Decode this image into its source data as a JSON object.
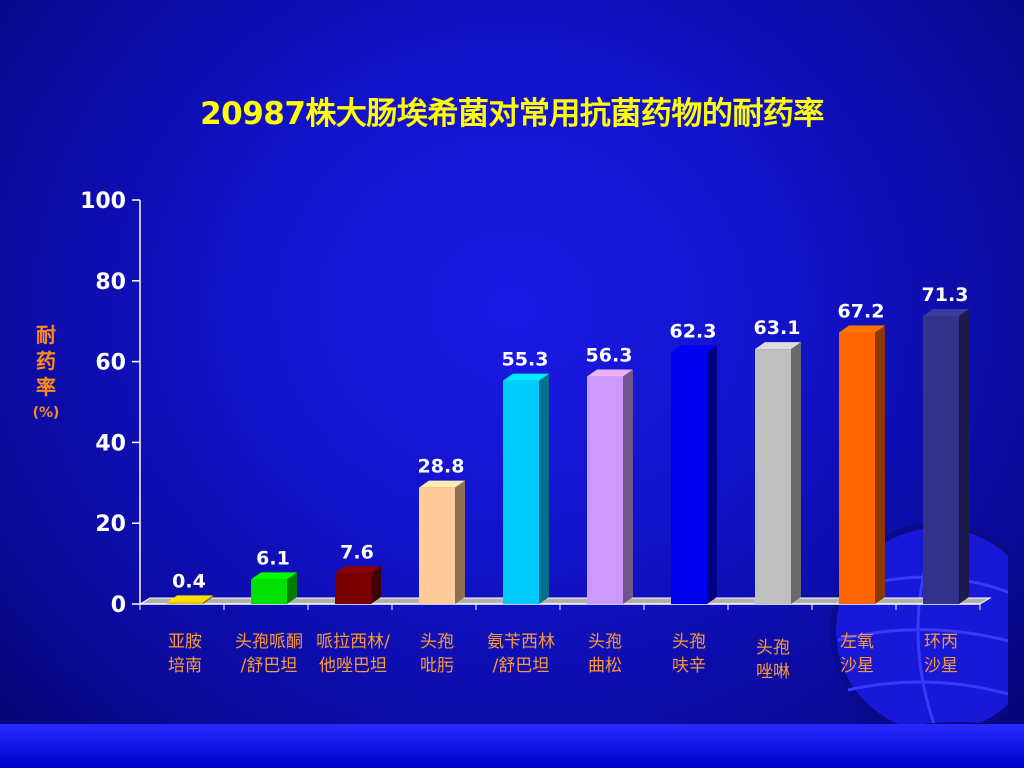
{
  "chart_data": {
    "type": "bar",
    "title": "20987株大肠埃希菌对常用抗菌药物的耐药率",
    "ylabel_main": "耐药率",
    "ylabel_unit": "(%)",
    "ylim": [
      0,
      100
    ],
    "yticks": [
      "100",
      "80",
      "60",
      "40",
      "20",
      "0"
    ],
    "categories": [
      "亚胺\n培南",
      "头孢哌酮\n/舒巴坦",
      "哌拉西林/\n他唑巴坦",
      "头孢\n吡肟",
      "氨苄西林\n/舒巴坦",
      "头孢\n曲松",
      "头孢\n呋辛",
      "头孢\n唑啉",
      "左氧\n沙星",
      "环丙\n沙星"
    ],
    "values": [
      0.4,
      6.1,
      7.6,
      28.8,
      55.3,
      56.3,
      62.3,
      63.1,
      67.2,
      71.3
    ],
    "value_labels": [
      "0.4",
      "6.1",
      "7.6",
      "28.8",
      "55.3",
      "56.3",
      "62.3",
      "63.1",
      "67.2",
      "71.3"
    ],
    "bar_colors": [
      "#e0c000",
      "#00e000",
      "#7a0000",
      "#ffcc99",
      "#00ccff",
      "#cc99ff",
      "#0000ee",
      "#c0c0c0",
      "#ff6600",
      "#33338a"
    ],
    "grid": false,
    "legend": "none"
  },
  "colors": {
    "title": "#ffff00",
    "axis_label": "#ff8a1e",
    "category_label": "#ff9a30",
    "tick_text": "#ffffff",
    "background": "#1212c8"
  }
}
